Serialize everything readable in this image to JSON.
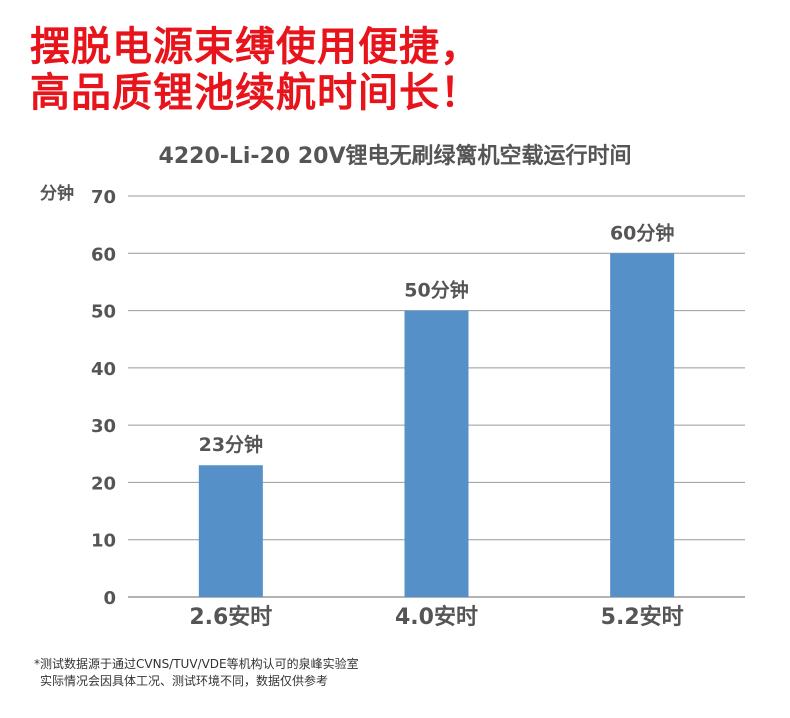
{
  "headline": {
    "line1": "摆脱电源束缚使用便捷，",
    "line2": "高品质锂池续航时间长！"
  },
  "colors": {
    "headline": "#e8141c",
    "bar": "#5591c8",
    "text": "#555555",
    "grid": "#9a9a9a"
  },
  "chart_data": {
    "type": "bar",
    "title": "4220-Li-20 20V锂电无刷绿篱机空载运行时间",
    "xlabel": "",
    "ylabel": "分钟",
    "ylim": [
      0,
      70
    ],
    "yticks": [
      0,
      10,
      20,
      30,
      40,
      50,
      60,
      70
    ],
    "grid": true,
    "categories": [
      "2.6安时",
      "4.0安时",
      "5.2安时"
    ],
    "values": [
      23,
      50,
      60
    ],
    "data_labels": [
      "23分钟",
      "50分钟",
      "60分钟"
    ]
  },
  "footnote": {
    "line1": "*测试数据源于通过CVNS/TUV/VDE等机构认可的泉峰实验室",
    "line2": "实际情况会因具体工况、测试环境不同，数据仅供参考"
  }
}
